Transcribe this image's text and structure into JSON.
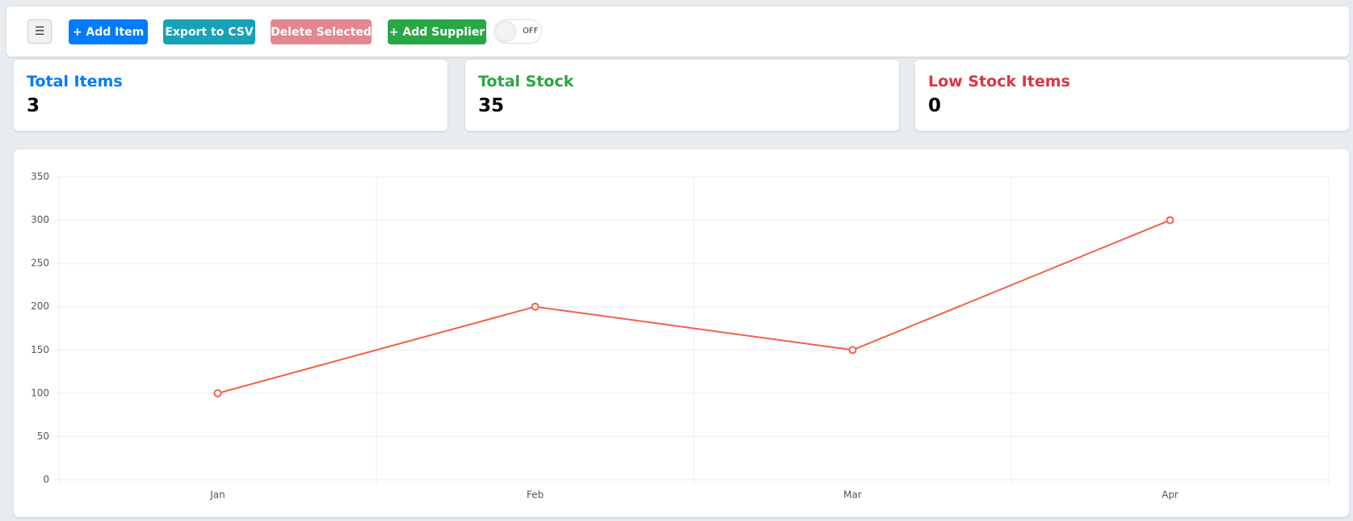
{
  "toolbar": {
    "menu_icon": "☰",
    "buttons": [
      "+ Add Item",
      "Export to CSV",
      "Delete Selected",
      "+ Add Supplier"
    ],
    "toggle": "OFF"
  },
  "stats": [
    {
      "label": "Total Items",
      "value": "3"
    },
    {
      "label": "Total Stock",
      "value": "35"
    },
    {
      "label": "Low Stock Items",
      "value": "0"
    }
  ],
  "chart_data": {
    "type": "line",
    "categories": [
      "Jan",
      "Feb",
      "Mar",
      "Apr"
    ],
    "values": [
      100,
      200,
      150,
      300
    ],
    "color": "#f4604c",
    "ylim": [
      0,
      350
    ],
    "yticks": [
      0,
      50,
      100,
      150,
      200,
      250,
      300,
      350
    ],
    "grid": true
  }
}
